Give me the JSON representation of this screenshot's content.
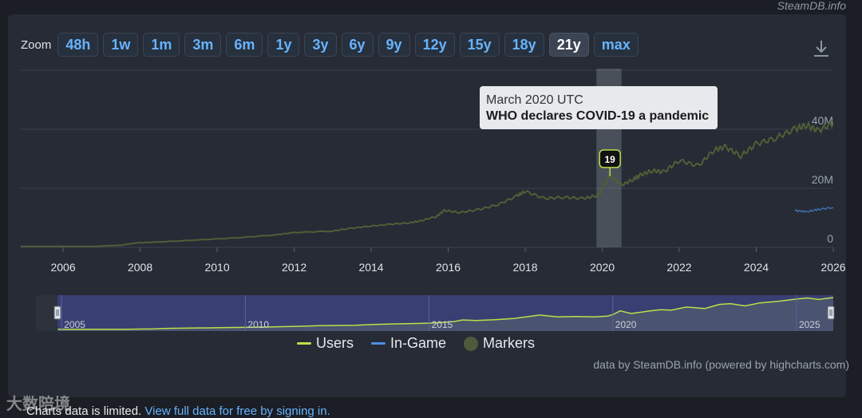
{
  "site_mark": "SteamDB.info",
  "zoom": {
    "label": "Zoom",
    "buttons": [
      "48h",
      "1w",
      "1m",
      "3m",
      "6m",
      "1y",
      "3y",
      "6y",
      "9y",
      "12y",
      "15y",
      "18y",
      "21y",
      "max"
    ],
    "active": "21y"
  },
  "tooltip": {
    "date": "March 2020 UTC",
    "text": "WHO declares COVID-19 a pandemic"
  },
  "marker_label": "19",
  "legend": [
    {
      "name": "Users",
      "color": "#b8e04a",
      "kind": "line"
    },
    {
      "name": "In-Game",
      "color": "#4c8fe0",
      "kind": "line"
    },
    {
      "name": "Markers",
      "color": "#4d5a3c",
      "kind": "dot"
    }
  ],
  "credits": "data by SteamDB.info (powered by highcharts.com)",
  "footer": {
    "text": "Charts data is limited.",
    "link": "View full data for free by signing in."
  },
  "watermark": "大数陪境",
  "colors": {
    "users_main": "#4f5f37",
    "users_nav": "#b8e04a",
    "in_game": "#4c8fe0",
    "nav_selection": "#3d4380"
  },
  "chart_data": {
    "type": "line",
    "x_ticks": [
      "2006",
      "2008",
      "2010",
      "2012",
      "2014",
      "2016",
      "2018",
      "2020",
      "2022",
      "2024",
      "2026"
    ],
    "y_ticks": [
      "0",
      "20M",
      "40M"
    ],
    "ylim": [
      0,
      60000000
    ],
    "highlight_band": {
      "from": 2019.85,
      "to": 2020.5
    },
    "marker": {
      "x": 2020.2,
      "label": "19"
    },
    "navigator_ticks": [
      "2005",
      "2010",
      "2015",
      "2020",
      "2025"
    ],
    "series": [
      {
        "name": "Users",
        "x": [
          2004.9,
          2005.9,
          2006.8,
          2007.5,
          2007.9,
          2008.5,
          2009.5,
          2010.5,
          2011.5,
          2012.0,
          2013.0,
          2013.5,
          2014.0,
          2014.5,
          2015.0,
          2015.3,
          2015.7,
          2015.9,
          2016.3,
          2016.8,
          2017.3,
          2017.8,
          2018.0,
          2018.5,
          2019.0,
          2019.5,
          2019.85,
          2020.0,
          2020.2,
          2020.5,
          2020.8,
          2021.0,
          2021.3,
          2021.6,
          2022.0,
          2022.5,
          2022.9,
          2023.2,
          2023.6,
          2024.0,
          2024.5,
          2025.0,
          2025.3,
          2025.6,
          2026.0
        ],
        "y": [
          300000,
          300000,
          300000,
          700000,
          1500000,
          1800000,
          2500000,
          3200000,
          4200000,
          5000000,
          5500000,
          6500000,
          7200000,
          7800000,
          8300000,
          9000000,
          10500000,
          12500000,
          11800000,
          12800000,
          14500000,
          17500000,
          19000000,
          16500000,
          17000000,
          16500000,
          17500000,
          19500000,
          24500000,
          21000000,
          23000000,
          24500000,
          26000000,
          25500000,
          29500000,
          27500000,
          33000000,
          34000000,
          31000000,
          35000000,
          37000000,
          40000000,
          41500000,
          39500000,
          42000000
        ]
      },
      {
        "name": "In-Game",
        "x": [
          2025.0,
          2025.3,
          2025.6,
          2026.0
        ],
        "y": [
          12500000,
          12000000,
          12800000,
          13500000
        ]
      }
    ]
  }
}
